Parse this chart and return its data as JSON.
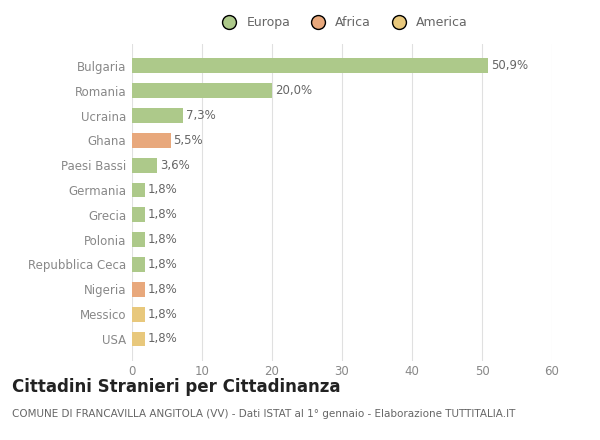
{
  "categories": [
    "Bulgaria",
    "Romania",
    "Ucraina",
    "Ghana",
    "Paesi Bassi",
    "Germania",
    "Grecia",
    "Polonia",
    "Repubblica Ceca",
    "Nigeria",
    "Messico",
    "USA"
  ],
  "values": [
    50.9,
    20.0,
    7.3,
    5.5,
    3.6,
    1.8,
    1.8,
    1.8,
    1.8,
    1.8,
    1.8,
    1.8
  ],
  "labels": [
    "50,9%",
    "20,0%",
    "7,3%",
    "5,5%",
    "3,6%",
    "1,8%",
    "1,8%",
    "1,8%",
    "1,8%",
    "1,8%",
    "1,8%",
    "1,8%"
  ],
  "continent": [
    "Europa",
    "Europa",
    "Europa",
    "Africa",
    "Europa",
    "Europa",
    "Europa",
    "Europa",
    "Europa",
    "Africa",
    "America",
    "America"
  ],
  "colors": {
    "Europa": "#adc98a",
    "Africa": "#e8a87c",
    "America": "#e8c87c"
  },
  "legend_labels": [
    "Europa",
    "Africa",
    "America"
  ],
  "legend_colors": [
    "#adc98a",
    "#e8a87c",
    "#e8c87c"
  ],
  "title": "Cittadini Stranieri per Cittadinanza",
  "subtitle": "COMUNE DI FRANCAVILLA ANGITOLA (VV) - Dati ISTAT al 1° gennaio - Elaborazione TUTTITALIA.IT",
  "xlim": [
    0,
    60
  ],
  "xticks": [
    0,
    10,
    20,
    30,
    40,
    50,
    60
  ],
  "background_color": "#ffffff",
  "grid_color": "#e0e0e0",
  "bar_height": 0.6,
  "label_fontsize": 8.5,
  "ytick_fontsize": 8.5,
  "xtick_fontsize": 8.5,
  "title_fontsize": 12,
  "subtitle_fontsize": 7.5
}
